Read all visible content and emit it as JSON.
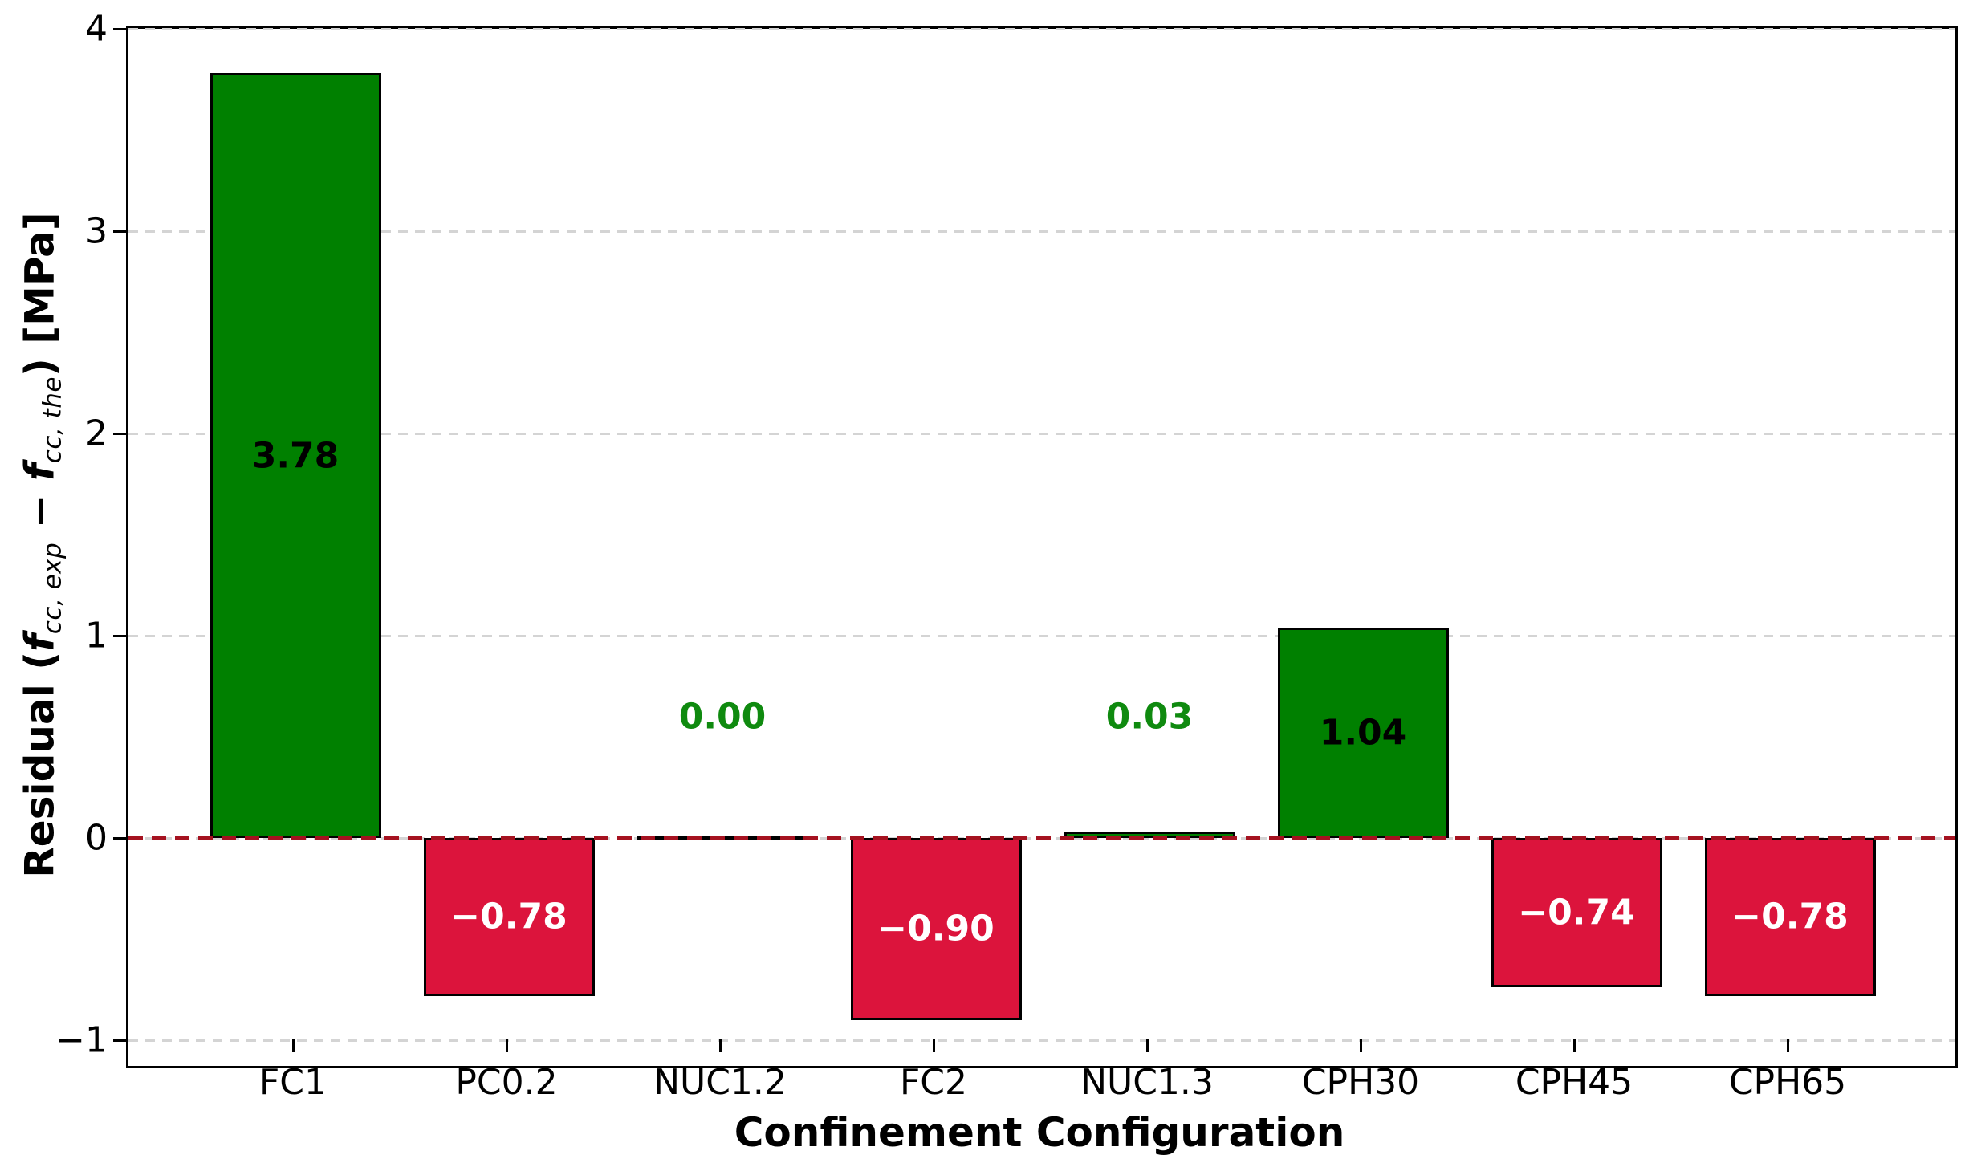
{
  "chart_data": {
    "type": "bar",
    "title": "",
    "xlabel": "Confinement Configuration",
    "ylabel": "Residual (f_cc,exp − f_cc,the) [MPa]",
    "ylabel_parts": {
      "prefix": "Residual (",
      "f1": "f",
      "sub1": "cc, exp",
      "minus": " − ",
      "f2": "f",
      "sub2": "cc, the",
      "suffix": ") [MPa]"
    },
    "categories": [
      "FC1",
      "PC0.2",
      "NUC1.2",
      "FC2",
      "NUC1.3",
      "CPH30",
      "CPH45",
      "CPH65"
    ],
    "values": [
      3.78,
      -0.78,
      0.0,
      -0.9,
      0.03,
      1.04,
      -0.74,
      -0.78
    ],
    "bars": [
      {
        "category": "FC1",
        "value": 3.78,
        "label": "3.78",
        "kind": "positive",
        "label_color": "#000000",
        "label_at": 1.89
      },
      {
        "category": "PC0.2",
        "value": -0.78,
        "label": "−0.78",
        "kind": "negative",
        "label_color": "#ffffff",
        "label_at": -0.39
      },
      {
        "category": "NUC1.2",
        "value": 0.0,
        "label": "0.00",
        "kind": "zero",
        "label_color": "#0f8a0f",
        "label_at": 0.6
      },
      {
        "category": "FC2",
        "value": -0.9,
        "label": "−0.90",
        "kind": "negative",
        "label_color": "#ffffff",
        "label_at": -0.45
      },
      {
        "category": "NUC1.3",
        "value": 0.03,
        "label": "0.03",
        "kind": "positive",
        "label_color": "#0f8a0f",
        "label_at": 0.6
      },
      {
        "category": "CPH30",
        "value": 1.04,
        "label": "1.04",
        "kind": "positive",
        "label_color": "#000000",
        "label_at": 0.52
      },
      {
        "category": "CPH45",
        "value": -0.74,
        "label": "−0.74",
        "kind": "negative",
        "label_color": "#ffffff",
        "label_at": -0.37
      },
      {
        "category": "CPH65",
        "value": -0.78,
        "label": "−0.78",
        "kind": "negative",
        "label_color": "#ffffff",
        "label_at": -0.39
      }
    ],
    "yticks": [
      {
        "label": "4",
        "value": 4
      },
      {
        "label": "3",
        "value": 3
      },
      {
        "label": "2",
        "value": 2
      },
      {
        "label": "1",
        "value": 1
      },
      {
        "label": "0",
        "value": 0
      },
      {
        "label": "−1",
        "value": -1
      }
    ],
    "ylim": [
      -1.13,
      4.0
    ],
    "grid": {
      "axis": "y",
      "style": "dashed",
      "color": "#d4d4d4"
    },
    "zero_line": {
      "value": 0,
      "style": "dashed",
      "color": "#a51220"
    },
    "colors": {
      "positive": "#008000",
      "negative": "#dc143c",
      "bar_edge": "#000000",
      "zero_bar": "#000000",
      "background": "#ffffff"
    },
    "legend": null
  }
}
